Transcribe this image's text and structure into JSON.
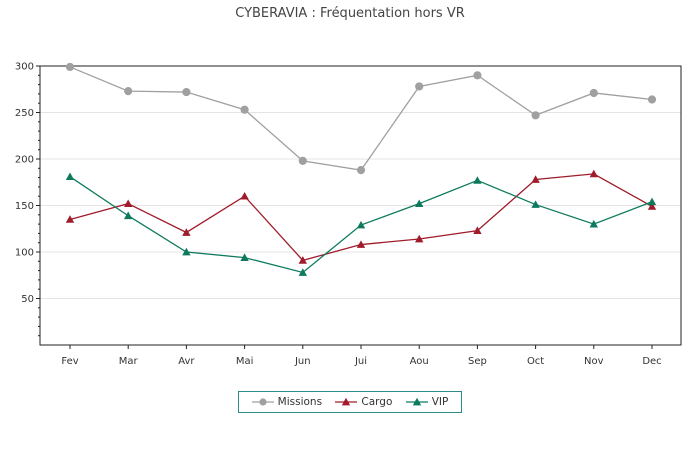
{
  "chart_data": {
    "type": "line",
    "title": "CYBERAVIA : Fréquentation hors VR",
    "xlabel": "",
    "ylabel": "",
    "categories": [
      "Fev",
      "Mar",
      "Avr",
      "Mai",
      "Jun",
      "Jui",
      "Aou",
      "Sep",
      "Oct",
      "Nov",
      "Dec"
    ],
    "ylim": [
      0,
      300
    ],
    "yticks": [
      50,
      100,
      150,
      200,
      250,
      300
    ],
    "grid": true,
    "legend_position": "bottom-center",
    "series": [
      {
        "name": "Missions",
        "color": "#a0a0a0",
        "marker": "diamond",
        "values": [
          299,
          273,
          272,
          253,
          198,
          188,
          278,
          290,
          247,
          271,
          264
        ]
      },
      {
        "name": "Cargo",
        "color": "#a01c2a",
        "marker": "triangle",
        "values": [
          135,
          152,
          121,
          160,
          91,
          108,
          114,
          123,
          178,
          184,
          149
        ]
      },
      {
        "name": "VIP",
        "color": "#0d7a5e",
        "marker": "triangle",
        "values": [
          181,
          139,
          100,
          94,
          78,
          129,
          152,
          177,
          151,
          130,
          154
        ]
      }
    ]
  }
}
